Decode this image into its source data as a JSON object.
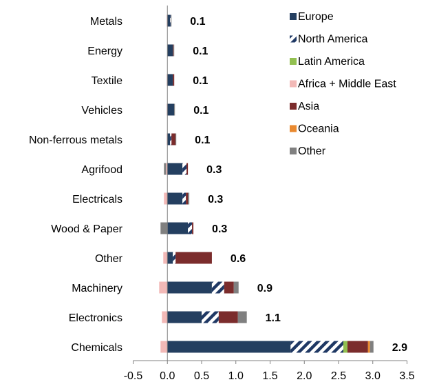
{
  "chart_data": {
    "type": "bar",
    "orientation": "horizontal",
    "stacked": true,
    "categories": [
      "Metals",
      "Energy",
      "Textile",
      "Vehicles",
      "Non-ferrous metals",
      "Agrifood",
      "Electricals",
      "Wood & Paper",
      "Other",
      "Machinery",
      "Electronics",
      "Chemicals"
    ],
    "totals": [
      "0.1",
      "0.1",
      "0.1",
      "0.1",
      "0.1",
      "0.3",
      "0.3",
      "0.3",
      "0.6",
      "0.9",
      "1.1",
      "2.9"
    ],
    "xlim": [
      -0.5,
      3.5
    ],
    "xticks": [
      -0.5,
      0.0,
      0.5,
      1.0,
      1.5,
      2.0,
      2.5,
      3.0,
      3.5
    ],
    "xtick_labels": [
      "-0.5",
      "0.0",
      "0.5",
      "1.0",
      "1.5",
      "2.0",
      "2.5",
      "3.0",
      "3.5"
    ],
    "grid": false,
    "legend_position": "top-right",
    "series": [
      {
        "name": "Europe",
        "color": "#243f60",
        "pattern": "solid",
        "values": [
          0.04,
          0.08,
          0.08,
          0.1,
          0.04,
          0.22,
          0.22,
          0.3,
          0.08,
          0.65,
          0.5,
          1.8
        ]
      },
      {
        "name": "North America",
        "color": "#1f3864",
        "pattern": "diagonal-stripes",
        "values": [
          0.01,
          0.0,
          0.0,
          0.0,
          0.02,
          0.06,
          0.05,
          0.06,
          0.04,
          0.18,
          0.25,
          0.77
        ]
      },
      {
        "name": "Latin America",
        "color": "#92c050",
        "pattern": "solid",
        "values": [
          0,
          0,
          0,
          0,
          0,
          0,
          0,
          0,
          0,
          0,
          0,
          0.06
        ]
      },
      {
        "name": "Africa + Middle East",
        "color": "#f2b9b7",
        "pattern": "solid",
        "values": [
          -0.01,
          0.0,
          -0.01,
          -0.01,
          -0.01,
          -0.02,
          -0.05,
          0.0,
          -0.06,
          -0.12,
          -0.08,
          -0.1
        ]
      },
      {
        "name": "Asia",
        "color": "#7b2c2c",
        "pattern": "solid",
        "values": [
          0.0,
          0.01,
          0.02,
          0.0,
          0.06,
          0.02,
          0.03,
          0.02,
          0.53,
          0.14,
          0.28,
          0.3
        ]
      },
      {
        "name": "Oceania",
        "color": "#e9892f",
        "pattern": "solid",
        "values": [
          0,
          0,
          0,
          0,
          0,
          0,
          0,
          0,
          0,
          0,
          0,
          0.03
        ]
      },
      {
        "name": "Other",
        "color": "#808080",
        "pattern": "solid",
        "values": [
          0.01,
          0.01,
          0.0,
          0.01,
          0.01,
          -0.03,
          0.02,
          -0.1,
          0.0,
          0.07,
          0.13,
          0.05
        ]
      }
    ]
  }
}
